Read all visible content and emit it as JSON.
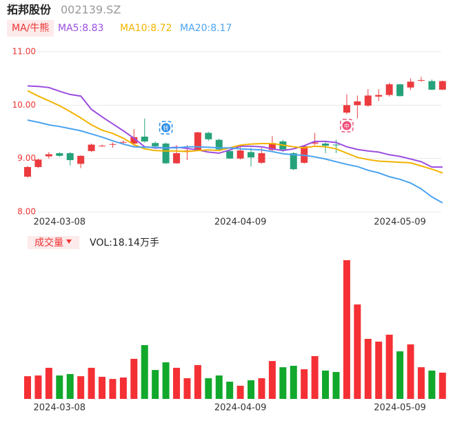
{
  "header": {
    "name": "拓邦股份",
    "code": "002139.SZ"
  },
  "chart_data": [
    {
      "type": "candlestick",
      "indicator_label": "MA/牛熊",
      "categories": [
        null,
        null,
        null,
        "2024-03-08",
        null,
        null,
        null,
        null,
        null,
        null,
        null,
        null,
        null,
        null,
        null,
        null,
        null,
        null,
        null,
        null,
        "2024-04-09",
        null,
        null,
        null,
        null,
        null,
        null,
        null,
        null,
        null,
        null,
        null,
        null,
        null,
        null,
        "2024-05-09",
        null,
        null,
        null,
        null
      ],
      "open": [
        8.66,
        8.84,
        9.04,
        9.1,
        9.1,
        8.9,
        9.14,
        9.23,
        9.26,
        9.3,
        9.28,
        9.41,
        9.29,
        9.28,
        8.91,
        9.13,
        9.15,
        9.48,
        9.35,
        9.14,
        9.0,
        9.12,
        8.92,
        9.16,
        9.32,
        9.1,
        8.92,
        9.28,
        9.28,
        9.26,
        9.86,
        10.0,
        9.99,
        10.16,
        10.19,
        10.39,
        10.33,
        10.46,
        10.45,
        10.29
      ],
      "high": [
        8.86,
        9.0,
        9.12,
        9.12,
        9.12,
        9.06,
        9.28,
        9.26,
        9.3,
        9.34,
        9.55,
        9.75,
        9.32,
        9.3,
        9.25,
        9.25,
        9.5,
        9.5,
        9.37,
        9.16,
        9.22,
        9.2,
        9.2,
        9.42,
        9.35,
        9.12,
        9.25,
        9.48,
        9.32,
        9.35,
        10.2,
        10.18,
        10.3,
        10.3,
        10.42,
        10.4,
        10.5,
        10.53,
        10.48,
        10.46
      ],
      "low": [
        8.64,
        8.82,
        9.0,
        9.03,
        8.87,
        8.82,
        9.12,
        9.22,
        9.2,
        9.26,
        9.22,
        9.3,
        9.18,
        8.9,
        8.9,
        8.97,
        9.14,
        9.33,
        9.15,
        8.99,
        8.98,
        8.85,
        8.9,
        9.12,
        9.12,
        8.78,
        8.9,
        9.25,
        9.1,
        9.1,
        9.83,
        9.75,
        9.97,
        10.08,
        10.16,
        10.16,
        10.28,
        10.44,
        10.28,
        10.28
      ],
      "close": [
        8.84,
        8.98,
        9.08,
        9.05,
        8.97,
        9.05,
        9.26,
        9.24,
        9.27,
        9.31,
        9.4,
        9.32,
        9.23,
        8.91,
        9.1,
        9.15,
        9.49,
        9.36,
        9.17,
        9.0,
        9.15,
        9.02,
        9.1,
        9.29,
        9.17,
        8.8,
        9.23,
        9.3,
        9.24,
        9.25,
        10.0,
        10.07,
        10.18,
        10.19,
        10.39,
        10.17,
        10.44,
        10.47,
        10.29,
        10.45
      ],
      "up_color": "#eb3b3f",
      "down_color": "#26a27b",
      "series": [
        {
          "name": "MA5:8.83",
          "color": "#9b4de0",
          "values": [
            10.36,
            10.35,
            10.33,
            10.26,
            10.2,
            10.17,
            9.92,
            9.78,
            9.65,
            9.52,
            9.38,
            9.22,
            9.2,
            9.2,
            9.21,
            9.19,
            9.16,
            9.12,
            9.1,
            9.16,
            9.23,
            9.23,
            9.22,
            9.18,
            9.15,
            9.18,
            9.24,
            9.32,
            9.32,
            9.3,
            9.22,
            9.17,
            9.14,
            9.12,
            9.07,
            9.04,
            8.99,
            8.94,
            8.84,
            8.84
          ]
        },
        {
          "name": "MA10:8.72",
          "color": "#f2b300",
          "values": [
            10.27,
            10.17,
            10.08,
            9.99,
            9.88,
            9.76,
            9.63,
            9.53,
            9.47,
            9.38,
            9.26,
            9.18,
            9.15,
            9.14,
            9.14,
            9.13,
            9.15,
            9.16,
            9.15,
            9.2,
            9.25,
            9.27,
            9.28,
            9.28,
            9.25,
            9.22,
            9.2,
            9.23,
            9.22,
            9.18,
            9.1,
            9.02,
            8.98,
            8.95,
            8.94,
            8.93,
            8.92,
            8.86,
            8.8,
            8.73
          ]
        },
        {
          "name": "MA20:8.17",
          "color": "#4aa3f0",
          "values": [
            9.72,
            9.68,
            9.63,
            9.6,
            9.56,
            9.52,
            9.46,
            9.4,
            9.33,
            9.27,
            9.22,
            9.21,
            9.21,
            9.2,
            9.2,
            9.22,
            9.22,
            9.21,
            9.2,
            9.2,
            9.18,
            9.17,
            9.16,
            9.13,
            9.09,
            9.07,
            9.06,
            9.03,
            8.99,
            8.94,
            8.89,
            8.85,
            8.78,
            8.73,
            8.66,
            8.61,
            8.54,
            8.43,
            8.28,
            8.17
          ]
        }
      ],
      "annotations": [
        "转",
        "中"
      ],
      "ylim": [
        8,
        11
      ],
      "yticks": [
        {
          "value": 8,
          "label": "8.00"
        },
        {
          "value": 9,
          "label": "9.00"
        },
        {
          "value": 10,
          "label": "10.00"
        },
        {
          "value": 11,
          "label": "11.00"
        }
      ],
      "grid": true
    },
    {
      "type": "bar",
      "title": "成交量",
      "value_label": "VOL:18.14万手",
      "categories": [
        null,
        null,
        null,
        "2024-03-08",
        null,
        null,
        null,
        null,
        null,
        null,
        null,
        null,
        null,
        null,
        null,
        null,
        null,
        null,
        null,
        null,
        "2024-04-09",
        null,
        null,
        null,
        null,
        null,
        null,
        null,
        null,
        null,
        null,
        null,
        null,
        null,
        null,
        "2024-05-09",
        null,
        null,
        null,
        null
      ],
      "values": [
        15.7,
        16.2,
        21.5,
        16.2,
        17.2,
        15.7,
        21.5,
        15.3,
        13.8,
        14.8,
        27.7,
        37.2,
        20.0,
        25.3,
        21.5,
        14.3,
        23.4,
        14.3,
        16.2,
        11.9,
        9.1,
        12.9,
        14.3,
        26.2,
        21.9,
        22.9,
        20.5,
        29.6,
        19.6,
        18.6,
        95.9,
        65.3,
        41.5,
        39.6,
        44.4,
        32.9,
        37.7,
        21.9,
        19.6,
        18.14
      ],
      "up_color": "#f43035",
      "down_color": "#11a82c"
    }
  ]
}
